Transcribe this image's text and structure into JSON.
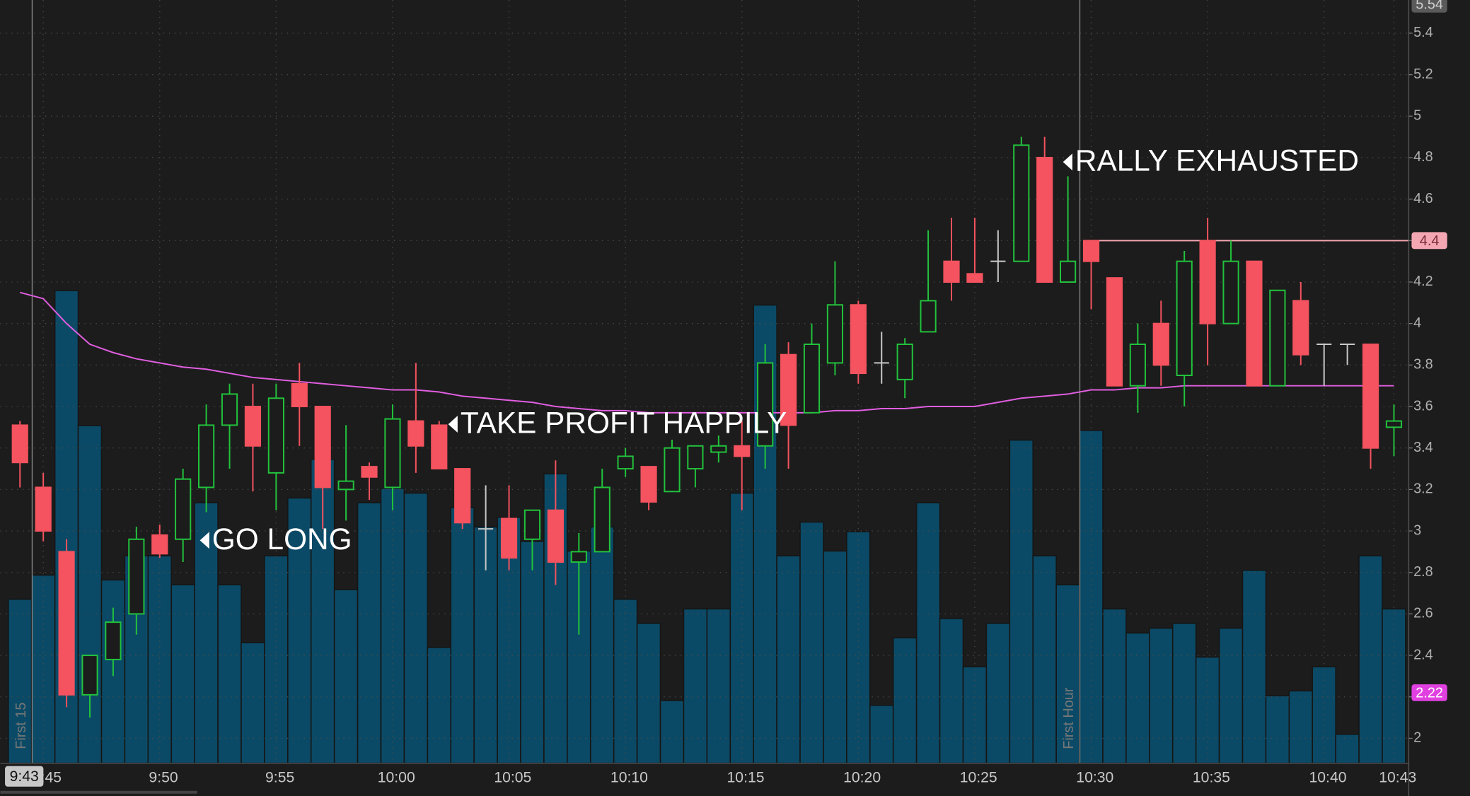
{
  "chart_data": {
    "type": "candlestick",
    "categories": [
      null,
      "9:45",
      null,
      null,
      null,
      null,
      "9:50",
      null,
      null,
      null,
      null,
      "9:55",
      null,
      null,
      null,
      null,
      "10:00",
      null,
      null,
      null,
      null,
      "10:05",
      null,
      null,
      null,
      null,
      "10:10",
      null,
      null,
      null,
      null,
      "10:15",
      null,
      null,
      null,
      null,
      "10:20",
      null,
      null,
      null,
      null,
      "10:25",
      null,
      null,
      null,
      null,
      "10:30",
      null,
      null,
      null,
      null,
      "10:35",
      null,
      null,
      null,
      null,
      "10:40",
      null,
      null,
      "10:43"
    ],
    "open": [
      3.51,
      3.21,
      2.9,
      2.21,
      2.38,
      2.6,
      2.98,
      2.96,
      3.21,
      3.51,
      3.6,
      3.28,
      3.71,
      3.6,
      3.2,
      3.31,
      3.21,
      3.53,
      3.51,
      3.3,
      3.01,
      3.06,
      2.96,
      3.1,
      2.85,
      2.9,
      3.3,
      3.31,
      3.19,
      3.3,
      3.38,
      3.41,
      3.41,
      3.85,
      3.57,
      3.81,
      4.09,
      3.81,
      3.73,
      3.96,
      4.3,
      4.24,
      4.3,
      4.3,
      4.8,
      4.2,
      4.4,
      4.22,
      3.7,
      4.0,
      3.75,
      4.4,
      4.0,
      4.3,
      3.7,
      4.11,
      3.9,
      3.9,
      3.9,
      3.5
    ],
    "high": [
      3.53,
      3.28,
      2.96,
      2.4,
      2.63,
      3.02,
      3.03,
      3.3,
      3.61,
      3.71,
      3.71,
      3.71,
      3.81,
      3.6,
      3.51,
      3.33,
      3.61,
      3.81,
      3.53,
      3.3,
      3.22,
      3.22,
      3.1,
      3.34,
      2.99,
      3.3,
      3.4,
      3.31,
      3.44,
      3.41,
      3.46,
      3.53,
      3.9,
      3.91,
      4.0,
      4.3,
      4.11,
      3.96,
      3.93,
      4.45,
      4.51,
      4.51,
      4.45,
      4.9,
      4.9,
      4.71,
      4.4,
      4.22,
      4.0,
      4.11,
      4.35,
      4.51,
      4.4,
      4.3,
      4.16,
      4.2,
      3.9,
      3.9,
      3.9,
      3.61
    ],
    "low": [
      3.21,
      2.95,
      2.15,
      2.1,
      2.3,
      2.5,
      2.87,
      2.85,
      3.09,
      3.3,
      3.19,
      3.1,
      3.41,
      3.01,
      3.05,
      3.15,
      3.1,
      3.28,
      3.3,
      3.01,
      2.81,
      2.81,
      2.81,
      2.74,
      2.5,
      2.9,
      3.26,
      3.1,
      3.19,
      3.21,
      3.33,
      3.1,
      3.3,
      3.3,
      3.57,
      3.75,
      3.71,
      3.71,
      3.64,
      3.96,
      4.11,
      4.2,
      4.2,
      4.3,
      4.2,
      4.2,
      4.07,
      3.7,
      3.57,
      3.7,
      3.6,
      3.8,
      4.0,
      3.7,
      3.7,
      3.8,
      3.7,
      3.8,
      3.3,
      3.36
    ],
    "close": [
      3.33,
      3.0,
      2.21,
      2.4,
      2.56,
      2.96,
      2.89,
      3.25,
      3.51,
      3.66,
      3.41,
      3.64,
      3.6,
      3.21,
      3.24,
      3.26,
      3.54,
      3.41,
      3.3,
      3.04,
      3.01,
      2.87,
      3.1,
      2.85,
      2.9,
      3.21,
      3.36,
      3.14,
      3.4,
      3.41,
      3.41,
      3.36,
      3.81,
      3.51,
      3.9,
      4.09,
      3.76,
      3.81,
      3.9,
      4.11,
      4.2,
      4.2,
      4.3,
      4.86,
      4.2,
      4.3,
      4.3,
      3.7,
      3.9,
      3.8,
      4.3,
      4.0,
      4.3,
      3.7,
      4.16,
      3.85,
      3.9,
      3.9,
      3.4,
      3.53
    ],
    "up_color": "#22c23c",
    "down_color": "#f4535f",
    "flat_color": "#c8c8c8",
    "volume": [
      34,
      39,
      98,
      70,
      38,
      43,
      43,
      37,
      54,
      37,
      25,
      43,
      55,
      63,
      36,
      54,
      57,
      56,
      24,
      53,
      49,
      51,
      46,
      60,
      44,
      49,
      34,
      29,
      13,
      32,
      32,
      56,
      95,
      43,
      50,
      44,
      48,
      12,
      26,
      54,
      30,
      20,
      29,
      67,
      43,
      37,
      69,
      32,
      27,
      28,
      29,
      22,
      28,
      40,
      14,
      15,
      20,
      6,
      43,
      32
    ],
    "volume_ylim": [
      0,
      100
    ],
    "volume_color": "#0b4a66",
    "moving_average": {
      "color": "#e05ee0",
      "values": [
        4.15,
        4.12,
        4.0,
        3.9,
        3.86,
        3.83,
        3.81,
        3.79,
        3.78,
        3.76,
        3.74,
        3.73,
        3.72,
        3.71,
        3.7,
        3.69,
        3.68,
        3.68,
        3.67,
        3.65,
        3.64,
        3.63,
        3.62,
        3.6,
        3.59,
        3.58,
        3.58,
        3.57,
        3.57,
        3.57,
        3.57,
        3.57,
        3.57,
        3.57,
        3.57,
        3.58,
        3.58,
        3.59,
        3.59,
        3.6,
        3.6,
        3.6,
        3.62,
        3.64,
        3.65,
        3.66,
        3.68,
        3.68,
        3.69,
        3.69,
        3.7,
        3.7,
        3.7,
        3.7,
        3.7,
        3.7,
        3.7,
        3.7,
        3.7,
        3.7
      ]
    },
    "ylim": [
      1.88,
      5.56
    ],
    "yticks": [
      2,
      2.2,
      2.4,
      2.6,
      2.8,
      3,
      3.2,
      3.4,
      3.6,
      3.8,
      4,
      4.2,
      4.4,
      4.6,
      4.8,
      5,
      5.2,
      5.4
    ],
    "grid": true,
    "hline": {
      "value": 4.4,
      "color": "#f4a6b3"
    },
    "badges": [
      5.54,
      2.22
    ],
    "badge_colors": [
      "#5a5a5a",
      "#e040e0"
    ],
    "crosshair_label": "9:43",
    "vlines": [
      {
        "label": "First 15"
      },
      {
        "label": "First Hour"
      }
    ],
    "annotations": [
      "GO LONG",
      "TAKE PROFIT  HAPPILY",
      "RALLY EXHAUSTED"
    ]
  }
}
